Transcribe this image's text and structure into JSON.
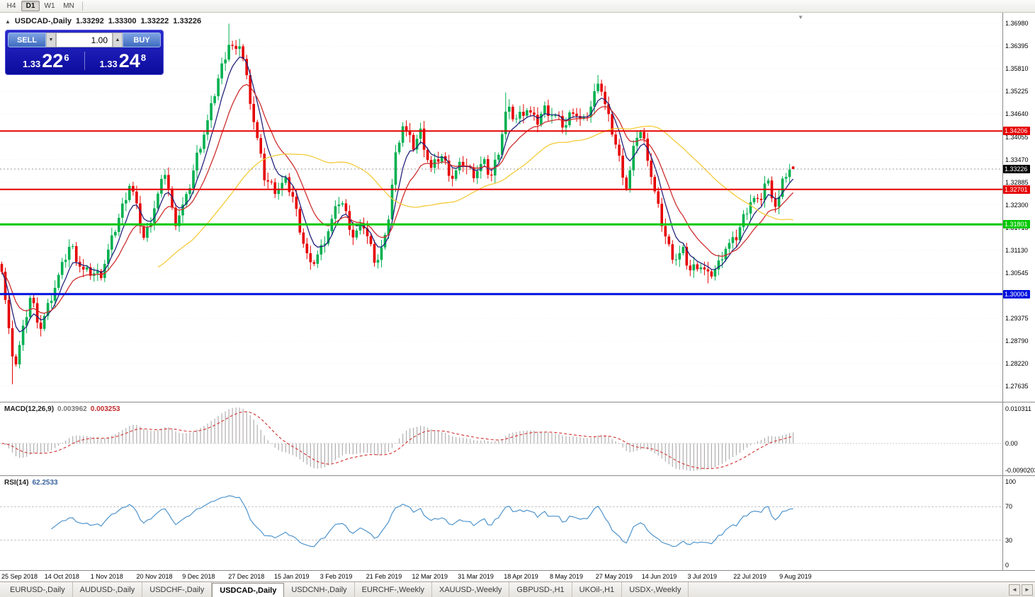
{
  "toolbar": {
    "timeframes": [
      "H4",
      "D1",
      "W1",
      "MN"
    ],
    "active": "D1"
  },
  "chart_header": {
    "collapse_icon": "▲",
    "symbol": "USDCAD-,Daily",
    "open": "1.33292",
    "high": "1.33300",
    "low": "1.33222",
    "close": "1.33226"
  },
  "one_click": {
    "sell_label": "SELL",
    "buy_label": "BUY",
    "volume": "1.00",
    "decrease_icon": "▼",
    "increase_icon": "▲",
    "sell_price_prefix": "1.33",
    "sell_price_big": "22",
    "sell_price_sup": "6",
    "buy_price_prefix": "1.33",
    "buy_price_big": "24",
    "buy_price_sup": "8"
  },
  "chart_data": {
    "type": "candlestick",
    "title": "USDCAD-,Daily",
    "shift_marker_icon": "▼",
    "n_candles": 224,
    "data_width_fraction": 0.793,
    "price_range": [
      1.2723,
      1.37253
    ],
    "price_ticks": [
      1.3698,
      1.36395,
      1.3581,
      1.35225,
      1.3464,
      1.34055,
      1.3347,
      1.32885,
      1.323,
      1.31715,
      1.3113,
      1.30545,
      1.2996,
      1.29375,
      1.2879,
      1.2822,
      1.27635
    ],
    "x_tick_labels": [
      "25 Sep 2018",
      "14 Oct 2018",
      "1 Nov 2018",
      "20 Nov 2018",
      "9 Dec 2018",
      "27 Dec 2018",
      "15 Jan 2019",
      "3 Feb 2019",
      "21 Feb 2019",
      "12 Mar 2019",
      "31 Mar 2019",
      "18 Apr 2019",
      "8 May 2019",
      "27 May 2019",
      "14 Jun 2019",
      "3 Jul 2019",
      "22 Jul 2019",
      "9 Aug 2019"
    ],
    "close_waypoints": [
      [
        0.0,
        1.307
      ],
      [
        0.015,
        1.28
      ],
      [
        0.0375,
        1.301
      ],
      [
        0.046,
        1.29
      ],
      [
        0.0866,
        1.313
      ],
      [
        0.102,
        1.306
      ],
      [
        0.125,
        1.305
      ],
      [
        0.1625,
        1.329
      ],
      [
        0.18,
        1.314
      ],
      [
        0.207,
        1.332
      ],
      [
        0.218,
        1.318
      ],
      [
        0.234,
        1.325
      ],
      [
        0.247,
        1.336
      ],
      [
        0.261,
        1.345
      ],
      [
        0.274,
        1.356
      ],
      [
        0.2875,
        1.365
      ],
      [
        0.296,
        1.362
      ],
      [
        0.301,
        1.365
      ],
      [
        0.31,
        1.355
      ],
      [
        0.319,
        1.344
      ],
      [
        0.332,
        1.33
      ],
      [
        0.3455,
        1.327
      ],
      [
        0.359,
        1.329
      ],
      [
        0.368,
        1.325
      ],
      [
        0.379,
        1.315
      ],
      [
        0.39,
        1.307
      ],
      [
        0.404,
        1.312
      ],
      [
        0.428,
        1.325
      ],
      [
        0.444,
        1.315
      ],
      [
        0.457,
        1.318
      ],
      [
        0.473,
        1.308
      ],
      [
        0.486,
        1.315
      ],
      [
        0.497,
        1.335
      ],
      [
        0.506,
        1.344
      ],
      [
        0.52,
        1.338
      ],
      [
        0.529,
        1.342
      ],
      [
        0.542,
        1.332
      ],
      [
        0.555,
        1.336
      ],
      [
        0.569,
        1.33
      ],
      [
        0.582,
        1.334
      ],
      [
        0.596,
        1.331
      ],
      [
        0.609,
        1.334
      ],
      [
        0.618,
        1.33
      ],
      [
        0.629,
        1.338
      ],
      [
        0.638,
        1.348
      ],
      [
        0.649,
        1.345
      ],
      [
        0.663,
        1.348
      ],
      [
        0.676,
        1.344
      ],
      [
        0.685,
        1.348
      ],
      [
        0.698,
        1.346
      ],
      [
        0.712,
        1.343
      ],
      [
        0.721,
        1.348
      ],
      [
        0.734,
        1.344
      ],
      [
        0.746,
        1.349
      ],
      [
        0.754,
        1.356
      ],
      [
        0.763,
        1.348
      ],
      [
        0.774,
        1.34
      ],
      [
        0.79,
        1.327
      ],
      [
        0.799,
        1.338
      ],
      [
        0.805,
        1.343
      ],
      [
        0.814,
        1.338
      ],
      [
        0.823,
        1.328
      ],
      [
        0.832,
        1.32
      ],
      [
        0.841,
        1.313
      ],
      [
        0.85,
        1.309
      ],
      [
        0.861,
        1.311
      ],
      [
        0.869,
        1.306
      ],
      [
        0.881,
        1.308
      ],
      [
        0.893,
        1.3045
      ],
      [
        0.904,
        1.307
      ],
      [
        0.914,
        1.312
      ],
      [
        0.927,
        1.314
      ],
      [
        0.9375,
        1.32
      ],
      [
        0.948,
        1.325
      ],
      [
        0.957,
        1.323
      ],
      [
        0.966,
        1.33
      ],
      [
        0.973,
        1.326
      ],
      [
        0.979,
        1.322
      ],
      [
        0.987,
        1.329
      ],
      [
        0.993,
        1.332
      ],
      [
        1.0,
        1.33226
      ]
    ],
    "wick_extremes": [
      {
        "f": 0.015,
        "low": 1.2768
      },
      {
        "f": 0.2875,
        "high": 1.3697
      },
      {
        "f": 0.638,
        "high": 1.352
      },
      {
        "f": 0.754,
        "high": 1.3565
      },
      {
        "f": 0.893,
        "low": 1.3028
      }
    ],
    "last_ohlc": [
      1.33292,
      1.333,
      1.33222,
      1.33226
    ],
    "up_color": "#00b050",
    "down_color": "#e60000",
    "moving_averages": [
      {
        "kind": "ema",
        "period": 6,
        "color": "#24247d"
      },
      {
        "kind": "ema",
        "period": 14,
        "color": "#cf2e2e"
      },
      {
        "kind": "sma",
        "period": 45,
        "color": "#f4cb3a"
      }
    ],
    "levels": [
      {
        "price": 1.34206,
        "color": "#e60000",
        "width": 2
      },
      {
        "price": 1.32701,
        "color": "#e60000",
        "width": 2
      },
      {
        "price": 1.31801,
        "color": "#00c800",
        "width": 3
      },
      {
        "price": 1.30004,
        "color": "#0010dd",
        "width": 3
      }
    ],
    "current_price": 1.33226,
    "macd": {
      "title": "MACD(12,26,9)",
      "fast": 12,
      "slow": 26,
      "signal": 9,
      "display_main": "0.003962",
      "display_signal": "0.003253",
      "scale_labels": [
        "0.010311",
        "0.00",
        "-0.0090203"
      ],
      "hist_color": "#b0aeae",
      "signal_color": "#d32f2f"
    },
    "rsi": {
      "title": "RSI(14)",
      "period": 14,
      "display_value": "62.2533",
      "scale_labels": [
        "100",
        "70",
        "30",
        "0"
      ],
      "guide_levels": [
        70,
        30
      ],
      "line_color": "#4f94cd"
    }
  },
  "tabs": {
    "items": [
      "EURUSD-,Daily",
      "AUDUSD-,Daily",
      "USDCHF-,Daily",
      "USDCAD-,Daily",
      "USDCNH-,Daily",
      "EURCHF-,Weekly",
      "XAUUSD-,Weekly",
      "GBPUSD-,H1",
      "UKOil-,H1",
      "USDX-,Weekly"
    ],
    "active": "USDCAD-,Daily",
    "scroll_left": "◄",
    "scroll_right": "►"
  }
}
